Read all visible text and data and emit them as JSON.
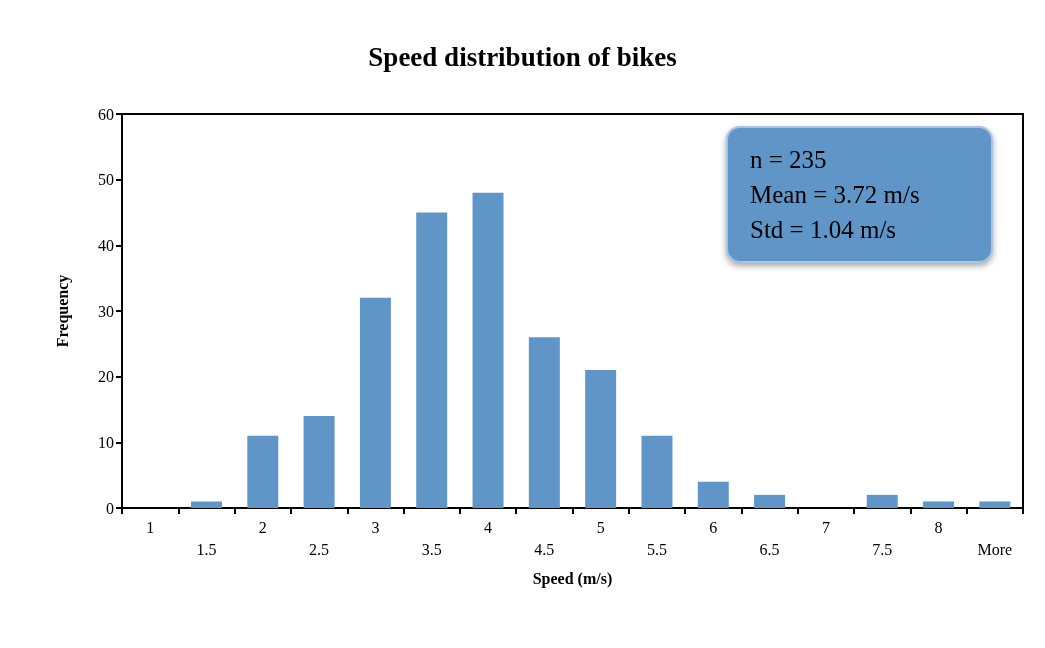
{
  "chart_data": {
    "type": "bar",
    "title": "Speed distribution of bikes",
    "xlabel": "Speed (m/s)",
    "ylabel": "Frequency",
    "categories": [
      "1",
      "1.5",
      "2",
      "2.5",
      "3",
      "3.5",
      "4",
      "4.5",
      "5",
      "5.5",
      "6",
      "6.5",
      "7",
      "7.5",
      "8",
      "More"
    ],
    "values": [
      0,
      1,
      11,
      14,
      32,
      45,
      48,
      26,
      21,
      11,
      4,
      2,
      0,
      2,
      1,
      1
    ],
    "color": "#5f95c7",
    "ylim": [
      0,
      60
    ],
    "yticks": [
      0,
      10,
      20,
      30,
      40,
      50,
      60
    ],
    "grid": false,
    "annotations": [
      "n  = 235",
      "Mean = 3.72 m/s",
      "Std = 1.04 m/s"
    ]
  }
}
